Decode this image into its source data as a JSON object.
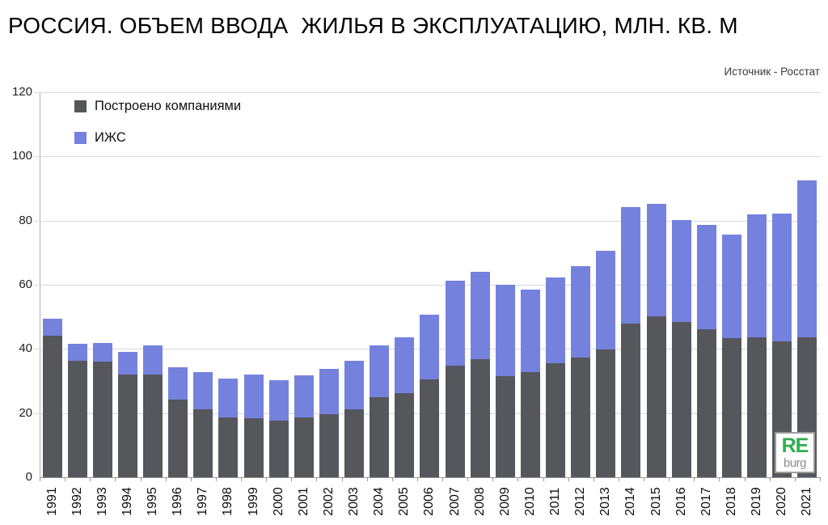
{
  "title": "РОССИЯ. ОБЪЕМ ВВОДА  ЖИЛЬЯ В ЭКСПЛУАТАЦИЮ, МЛН. КВ. М",
  "source": "Источник - Росстат",
  "legend": [
    {
      "label": "Построено компаниями",
      "color": "#55575c"
    },
    {
      "label": "ИЖС",
      "color": "#7482de"
    }
  ],
  "logo": {
    "line1": "RE",
    "line2": "burg",
    "color1": "#2eae4e",
    "color2": "#8c8c8c"
  },
  "colors": {
    "gridline": "#d8d8d8",
    "axis": "#9a9a9a"
  },
  "chart_data": {
    "type": "bar",
    "stacked": true,
    "title": "РОССИЯ. ОБЪЕМ ВВОДА  ЖИЛЬЯ В ЭКСПЛУАТАЦИЮ, МЛН. КВ. М",
    "xlabel": "",
    "ylabel": "",
    "ylim": [
      0,
      120
    ],
    "ytick_step": 20,
    "yticks": [
      0,
      20,
      40,
      60,
      80,
      100,
      120
    ],
    "grid": true,
    "legend_position": "top-left",
    "categories": [
      "1991",
      "1992",
      "1993",
      "1994",
      "1995",
      "1996",
      "1997",
      "1998",
      "1999",
      "2000",
      "2001",
      "2002",
      "2003",
      "2004",
      "2005",
      "2006",
      "2007",
      "2008",
      "2009",
      "2010",
      "2011",
      "2012",
      "2013",
      "2014",
      "2015",
      "2016",
      "2017",
      "2018",
      "2019",
      "2020",
      "2021"
    ],
    "series": [
      {
        "name": "Построено компаниями",
        "color": "#55575c",
        "values": [
          44.0,
          36.3,
          36.1,
          32.1,
          32.0,
          24.3,
          21.2,
          18.6,
          18.5,
          17.7,
          18.6,
          19.6,
          21.2,
          24.9,
          26.1,
          30.6,
          34.9,
          36.7,
          31.4,
          32.9,
          35.5,
          37.3,
          39.8,
          48.0,
          50.1,
          48.4,
          46.2,
          43.3,
          43.5,
          42.4,
          43.5
        ]
      },
      {
        "name": "ИЖС",
        "color": "#7482de",
        "values": [
          5.4,
          5.2,
          5.7,
          7.1,
          9.0,
          10.0,
          11.5,
          12.1,
          13.5,
          12.6,
          13.1,
          14.2,
          15.2,
          16.1,
          17.5,
          20.0,
          26.3,
          27.4,
          28.5,
          25.5,
          26.8,
          28.4,
          30.7,
          36.2,
          35.2,
          31.8,
          32.4,
          32.4,
          38.5,
          39.8,
          49.1
        ]
      }
    ],
    "totals": [
      49.4,
      41.5,
      41.8,
      39.2,
      41.0,
      34.3,
      32.7,
      30.7,
      32.0,
      30.3,
      31.7,
      33.8,
      36.4,
      41.0,
      43.6,
      50.6,
      61.2,
      64.1,
      59.9,
      58.4,
      62.3,
      65.7,
      70.5,
      84.2,
      85.3,
      80.2,
      78.6,
      75.7,
      82.0,
      82.2,
      92.6
    ]
  }
}
